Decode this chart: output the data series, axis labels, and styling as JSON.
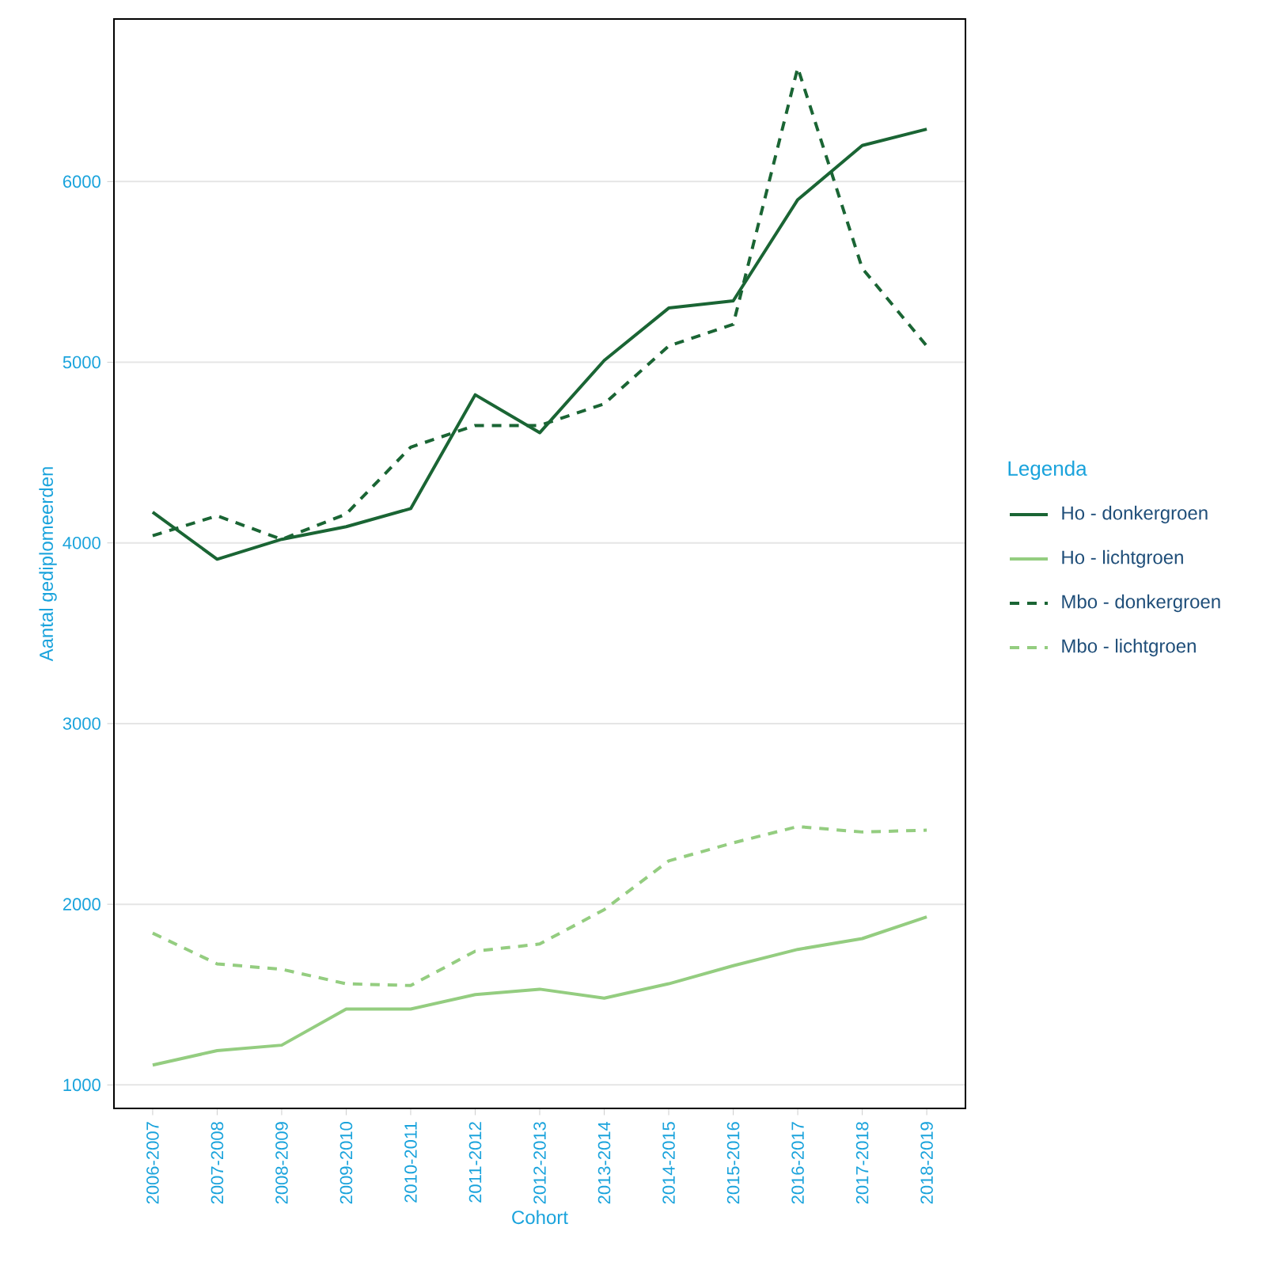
{
  "chart_data": {
    "type": "line",
    "xlabel": "Cohort",
    "ylabel": "Aantal gediplomeerden",
    "legend_title": "Legenda",
    "categories": [
      "2006-2007",
      "2007-2008",
      "2008-2009",
      "2009-2010",
      "2010-2011",
      "2011-2012",
      "2012-2013",
      "2013-2014",
      "2014-2015",
      "2015-2016",
      "2016-2017",
      "2017-2018",
      "2018-2019"
    ],
    "series": [
      {
        "name": "Ho - donkergroen",
        "color": "#1a6534",
        "line_style": "solid",
        "values": [
          4170,
          3910,
          4020,
          4090,
          4190,
          4820,
          4610,
          5010,
          5300,
          5340,
          5900,
          6200,
          6290
        ]
      },
      {
        "name": "Ho - lichtgroen",
        "color": "#94cd80",
        "line_style": "solid",
        "values": [
          1110,
          1190,
          1220,
          1420,
          1420,
          1500,
          1530,
          1480,
          1560,
          1660,
          1750,
          1810,
          1930
        ]
      },
      {
        "name": "Mbo - donkergroen",
        "color": "#1a6534",
        "line_style": "dashed",
        "values": [
          4040,
          4150,
          4020,
          4160,
          4530,
          4650,
          4650,
          4770,
          5090,
          5210,
          6630,
          5520,
          5090
        ]
      },
      {
        "name": "Mbo - lichtgroen",
        "color": "#94cd80",
        "line_style": "dashed",
        "values": [
          1840,
          1670,
          1640,
          1560,
          1550,
          1740,
          1780,
          1970,
          2240,
          2340,
          2430,
          2400,
          2410
        ]
      }
    ],
    "ylim": [
      870,
      6900
    ],
    "yticks": [
      1000,
      2000,
      3000,
      4000,
      5000,
      6000
    ],
    "grid": "y",
    "legend": "right",
    "marker": "none"
  }
}
